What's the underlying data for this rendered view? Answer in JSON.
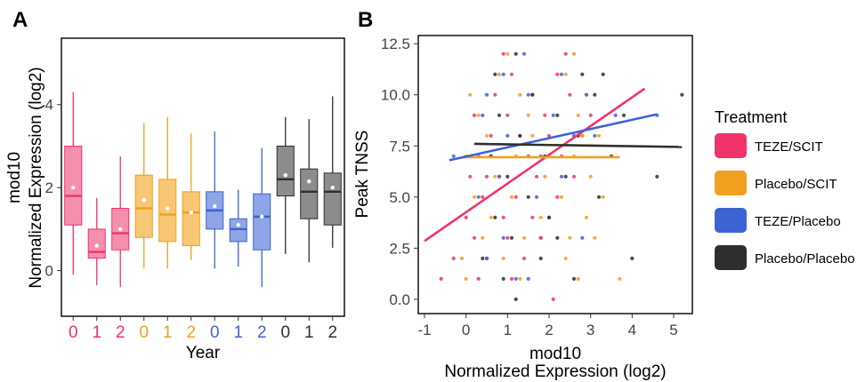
{
  "panel_labels": {
    "a": "A",
    "b": "B"
  },
  "colors": {
    "teze_scit": "#f0336b",
    "placebo_scit": "#f0a01e",
    "teze_placebo": "#3d63d3",
    "placebo_placebo": "#2e2e2e",
    "box_teze_scit": "#f58fae",
    "box_placebo_scit": "#f7c776",
    "box_teze_placebo": "#8fa5e6",
    "box_placebo_placebo": "#8c8c8c"
  },
  "legend": {
    "title": "Treatment",
    "items": [
      {
        "label": "TEZE/SCIT",
        "color": "#f0336b"
      },
      {
        "label": "Placebo/SCIT",
        "color": "#f0a01e"
      },
      {
        "label": "TEZE/Placebo",
        "color": "#3d63d3"
      },
      {
        "label": "Placebo/Placebo",
        "color": "#2e2e2e"
      }
    ]
  },
  "chart_data": [
    {
      "type": "box",
      "panel": "A",
      "title": "",
      "xlabel": "Year",
      "ylabel_line1": "mod10",
      "ylabel_line2": "Normalized Expression (log2)",
      "ylim": [
        -1.1,
        5.6
      ],
      "yticks": [
        0,
        2,
        4
      ],
      "ytick_labels": [
        "0",
        "2",
        "4"
      ],
      "grid": false,
      "categories": [
        "0",
        "1",
        "2",
        "0",
        "1",
        "2",
        "0",
        "1",
        "2",
        "0",
        "1",
        "2"
      ],
      "groups": [
        "TEZE/SCIT",
        "TEZE/SCIT",
        "TEZE/SCIT",
        "Placebo/SCIT",
        "Placebo/SCIT",
        "Placebo/SCIT",
        "TEZE/Placebo",
        "TEZE/Placebo",
        "TEZE/Placebo",
        "Placebo/Placebo",
        "Placebo/Placebo",
        "Placebo/Placebo"
      ],
      "boxes": [
        {
          "wlo": -0.1,
          "q1": 1.1,
          "med": 1.8,
          "q3": 3.0,
          "whi": 4.3,
          "mean": 2.0
        },
        {
          "wlo": -0.35,
          "q1": 0.3,
          "med": 0.45,
          "q3": 1.0,
          "whi": 1.75,
          "mean": 0.6
        },
        {
          "wlo": -0.4,
          "q1": 0.5,
          "med": 0.9,
          "q3": 1.5,
          "whi": 2.75,
          "mean": 1.0
        },
        {
          "wlo": 0.05,
          "q1": 0.8,
          "med": 1.5,
          "q3": 2.3,
          "whi": 3.55,
          "mean": 1.7
        },
        {
          "wlo": 0.05,
          "q1": 0.7,
          "med": 1.35,
          "q3": 2.2,
          "whi": 3.7,
          "mean": 1.5
        },
        {
          "wlo": 0.25,
          "q1": 0.6,
          "med": 1.4,
          "q3": 1.9,
          "whi": 3.3,
          "mean": 1.4
        },
        {
          "wlo": 0.05,
          "q1": 1.0,
          "med": 1.45,
          "q3": 1.9,
          "whi": 3.35,
          "mean": 1.55
        },
        {
          "wlo": 0.1,
          "q1": 0.7,
          "med": 1.0,
          "q3": 1.25,
          "whi": 1.95,
          "mean": 1.1
        },
        {
          "wlo": -0.4,
          "q1": 0.5,
          "med": 1.3,
          "q3": 1.85,
          "whi": 2.95,
          "mean": 1.3
        },
        {
          "wlo": 0.4,
          "q1": 1.8,
          "med": 2.2,
          "q3": 3.0,
          "whi": 3.7,
          "mean": 2.3
        },
        {
          "wlo": 0.2,
          "q1": 1.25,
          "med": 1.9,
          "q3": 2.45,
          "whi": 3.65,
          "mean": 2.15
        },
        {
          "wlo": 0.55,
          "q1": 1.1,
          "med": 1.9,
          "q3": 2.35,
          "whi": 4.2,
          "mean": 2.0
        }
      ]
    },
    {
      "type": "scatter",
      "panel": "B",
      "title": "",
      "xlabel_line1": "mod10",
      "xlabel_line2": "Normalized Expression (log2)",
      "ylabel": "Peak TNSS",
      "xlim": [
        -1.15,
        5.45
      ],
      "ylim": [
        -0.7,
        12.9
      ],
      "xticks": [
        -1,
        0,
        1,
        2,
        3,
        4,
        5
      ],
      "xtick_labels": [
        "-1",
        "0",
        "1",
        "2",
        "3",
        "4",
        "5"
      ],
      "yticks": [
        0,
        2.5,
        5,
        7.5,
        10,
        12.5
      ],
      "ytick_labels": [
        "0.0",
        "2.5",
        "5.0",
        "7.5",
        "10.0",
        "12.5"
      ],
      "grid": false,
      "series": [
        {
          "name": "TEZE/SCIT",
          "color": "#f0336b",
          "points": [
            [
              -0.6,
              1
            ],
            [
              0.3,
              1
            ],
            [
              1.1,
              1
            ],
            [
              2.1,
              0
            ],
            [
              -0.3,
              2
            ],
            [
              0.5,
              2
            ],
            [
              1.4,
              2
            ],
            [
              0.2,
              3
            ],
            [
              1.0,
              3
            ],
            [
              1.8,
              3
            ],
            [
              0.0,
              4
            ],
            [
              0.9,
              4
            ],
            [
              1.6,
              4
            ],
            [
              0.4,
              5
            ],
            [
              1.2,
              5
            ],
            [
              2.2,
              5
            ],
            [
              0.1,
              6
            ],
            [
              0.8,
              6
            ],
            [
              1.7,
              6
            ],
            [
              2.6,
              6
            ],
            [
              0.3,
              7
            ],
            [
              1.5,
              7
            ],
            [
              2.3,
              7
            ],
            [
              0.6,
              8
            ],
            [
              1.3,
              8
            ],
            [
              2.0,
              8
            ],
            [
              2.8,
              8
            ],
            [
              0.2,
              9
            ],
            [
              1.0,
              9
            ],
            [
              1.9,
              9
            ],
            [
              3.0,
              9
            ],
            [
              0.7,
              10
            ],
            [
              1.6,
              10
            ],
            [
              2.5,
              10
            ],
            [
              1.1,
              11
            ],
            [
              2.2,
              11
            ],
            [
              0.9,
              12
            ],
            [
              2.4,
              12
            ],
            [
              1.8,
              3
            ],
            [
              0.5,
              6
            ]
          ],
          "fit": [
            [
              -1.0,
              2.85
            ],
            [
              4.3,
              10.3
            ]
          ]
        },
        {
          "name": "Placebo/SCIT",
          "color": "#f0a01e",
          "points": [
            [
              0.0,
              1
            ],
            [
              1.3,
              1
            ],
            [
              2.7,
              1
            ],
            [
              3.7,
              1
            ],
            [
              -0.1,
              2
            ],
            [
              0.9,
              2
            ],
            [
              2.4,
              2
            ],
            [
              0.4,
              3
            ],
            [
              1.4,
              3
            ],
            [
              2.5,
              3
            ],
            [
              3.1,
              3
            ],
            [
              0.6,
              4
            ],
            [
              1.8,
              4
            ],
            [
              2.9,
              4
            ],
            [
              0.2,
              5
            ],
            [
              1.1,
              5
            ],
            [
              2.3,
              5
            ],
            [
              3.3,
              5
            ],
            [
              0.7,
              6
            ],
            [
              1.9,
              6
            ],
            [
              3.0,
              6
            ],
            [
              0.0,
              7
            ],
            [
              1.2,
              7
            ],
            [
              2.6,
              7
            ],
            [
              0.5,
              8
            ],
            [
              1.6,
              8
            ],
            [
              2.8,
              8
            ],
            [
              3.2,
              8
            ],
            [
              0.3,
              9
            ],
            [
              1.5,
              9
            ],
            [
              2.7,
              9
            ],
            [
              0.1,
              10
            ],
            [
              1.3,
              10
            ],
            [
              2.9,
              10
            ],
            [
              0.8,
              11
            ],
            [
              2.4,
              11
            ],
            [
              1.0,
              12
            ],
            [
              2.6,
              12
            ]
          ],
          "fit": [
            [
              -0.1,
              6.95
            ],
            [
              3.7,
              6.95
            ]
          ]
        },
        {
          "name": "TEZE/Placebo",
          "color": "#3d63d3",
          "points": [
            [
              -0.3,
              7
            ],
            [
              0.5,
              2
            ],
            [
              1.5,
              1
            ],
            [
              0.9,
              3
            ],
            [
              2.0,
              4
            ],
            [
              0.3,
              5
            ],
            [
              1.7,
              5
            ],
            [
              0.8,
              6
            ],
            [
              2.3,
              6
            ],
            [
              0.6,
              7
            ],
            [
              1.8,
              7
            ],
            [
              1.0,
              8
            ],
            [
              2.6,
              8
            ],
            [
              0.4,
              9
            ],
            [
              2.1,
              9
            ],
            [
              3.6,
              9
            ],
            [
              4.6,
              9
            ],
            [
              0.5,
              10
            ],
            [
              1.5,
              10
            ],
            [
              2.9,
              10
            ],
            [
              0.9,
              11
            ],
            [
              2.3,
              11
            ],
            [
              1.4,
              12
            ],
            [
              3.1,
              8
            ],
            [
              1.2,
              1
            ],
            [
              2.8,
              3
            ]
          ],
          "fit": [
            [
              -0.4,
              6.8
            ],
            [
              4.6,
              9.05
            ]
          ]
        },
        {
          "name": "Placebo/Placebo",
          "color": "#2e2e2e",
          "points": [
            [
              1.2,
              0
            ],
            [
              0.9,
              1
            ],
            [
              2.6,
              1
            ],
            [
              0.4,
              2
            ],
            [
              1.8,
              2
            ],
            [
              4.0,
              2
            ],
            [
              1.1,
              3
            ],
            [
              2.2,
              3
            ],
            [
              0.7,
              4
            ],
            [
              2.0,
              4
            ],
            [
              1.5,
              5
            ],
            [
              3.2,
              5
            ],
            [
              1.0,
              6
            ],
            [
              2.4,
              6
            ],
            [
              4.6,
              6
            ],
            [
              0.6,
              7
            ],
            [
              1.9,
              7
            ],
            [
              3.5,
              7
            ],
            [
              1.3,
              8
            ],
            [
              2.7,
              8
            ],
            [
              0.8,
              9
            ],
            [
              2.2,
              9
            ],
            [
              3.8,
              9
            ],
            [
              1.6,
              10
            ],
            [
              3.1,
              10
            ],
            [
              5.2,
              10
            ],
            [
              0.7,
              11
            ],
            [
              2.8,
              11
            ],
            [
              1.2,
              12
            ],
            [
              3.3,
              11
            ]
          ],
          "fit": [
            [
              0.2,
              7.6
            ],
            [
              5.2,
              7.45
            ]
          ]
        }
      ]
    }
  ]
}
